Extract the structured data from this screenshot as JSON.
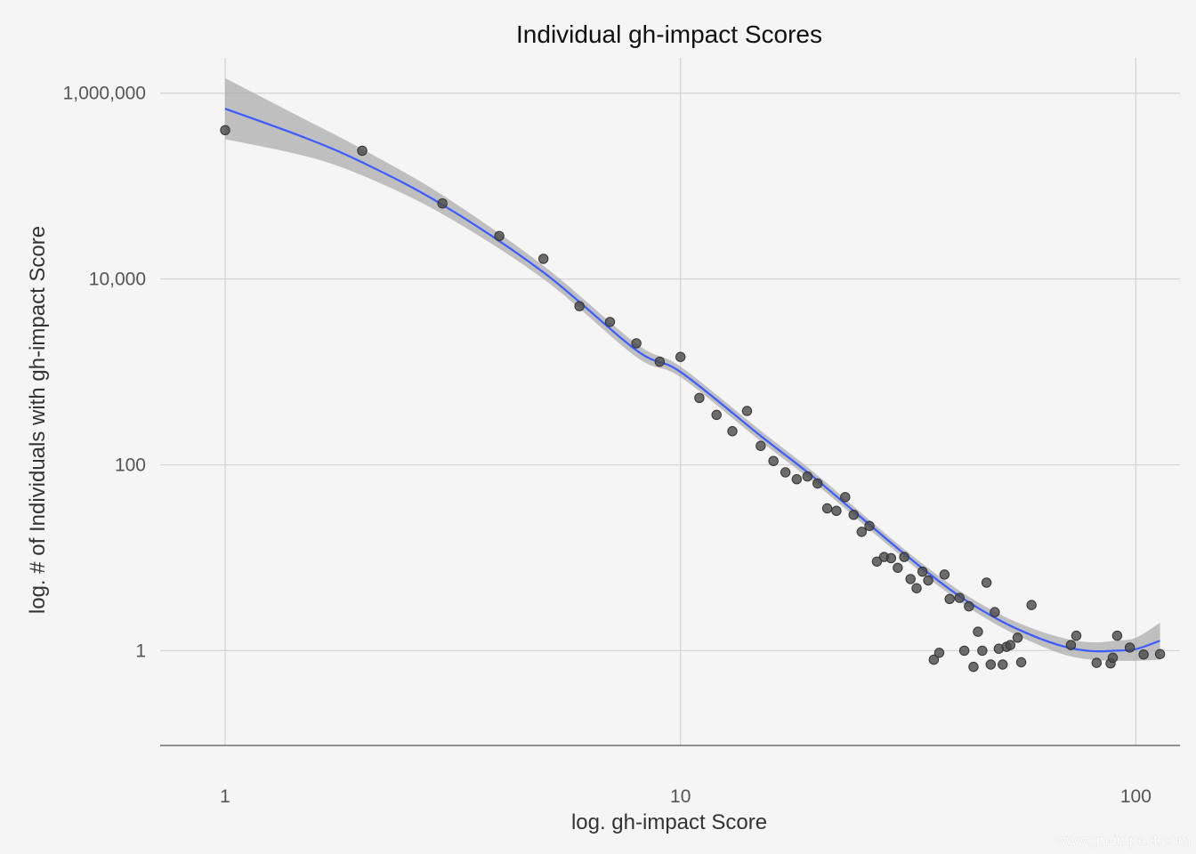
{
  "chart_data": {
    "type": "scatter",
    "title": "Individual gh-impact Scores",
    "xlabel": "log. gh-impact Score",
    "ylabel": "log. # of Individuals with gh-impact Score",
    "x_scale": "log",
    "y_scale": "log",
    "xlim": [
      0.72,
      125
    ],
    "ylim": [
      0.0955,
      2400000
    ],
    "x_ticks": [
      {
        "value": 1,
        "label": "1"
      },
      {
        "value": 10,
        "label": "10"
      },
      {
        "value": 100,
        "label": "100"
      }
    ],
    "y_ticks": [
      {
        "value": 1,
        "label": "1"
      },
      {
        "value": 100,
        "label": "100"
      },
      {
        "value": 10000,
        "label": "10,000"
      },
      {
        "value": 1000000,
        "label": "1,000,000"
      }
    ],
    "grid": true,
    "points": [
      {
        "x": 1,
        "y": 400000
      },
      {
        "x": 2,
        "y": 240000
      },
      {
        "x": 3,
        "y": 65000
      },
      {
        "x": 4,
        "y": 29000
      },
      {
        "x": 5,
        "y": 16500
      },
      {
        "x": 6,
        "y": 5100
      },
      {
        "x": 7,
        "y": 3450
      },
      {
        "x": 8,
        "y": 2030
      },
      {
        "x": 9,
        "y": 1290
      },
      {
        "x": 10,
        "y": 1450
      },
      {
        "x": 11,
        "y": 525
      },
      {
        "x": 12,
        "y": 345
      },
      {
        "x": 13,
        "y": 230
      },
      {
        "x": 14,
        "y": 380
      },
      {
        "x": 15,
        "y": 160
      },
      {
        "x": 16,
        "y": 110
      },
      {
        "x": 17,
        "y": 83
      },
      {
        "x": 18,
        "y": 70
      },
      {
        "x": 19,
        "y": 75
      },
      {
        "x": 20,
        "y": 63
      },
      {
        "x": 21,
        "y": 34
      },
      {
        "x": 22,
        "y": 32
      },
      {
        "x": 23,
        "y": 45
      },
      {
        "x": 24,
        "y": 29
      },
      {
        "x": 25,
        "y": 19
      },
      {
        "x": 26,
        "y": 22
      },
      {
        "x": 27,
        "y": 9.1
      },
      {
        "x": 28,
        "y": 10.2
      },
      {
        "x": 29,
        "y": 9.9
      },
      {
        "x": 30,
        "y": 7.8
      },
      {
        "x": 31,
        "y": 10.2
      },
      {
        "x": 32,
        "y": 5.9
      },
      {
        "x": 33,
        "y": 4.7
      },
      {
        "x": 34,
        "y": 7.1
      },
      {
        "x": 35,
        "y": 5.7
      },
      {
        "x": 36,
        "y": 0.8
      },
      {
        "x": 37,
        "y": 0.95
      },
      {
        "x": 38,
        "y": 6.6
      },
      {
        "x": 39,
        "y": 3.6
      },
      {
        "x": 41,
        "y": 3.7
      },
      {
        "x": 42,
        "y": 1.0
      },
      {
        "x": 43,
        "y": 3.0
      },
      {
        "x": 44,
        "y": 0.67
      },
      {
        "x": 45,
        "y": 1.6
      },
      {
        "x": 46,
        "y": 1.0
      },
      {
        "x": 47,
        "y": 5.4
      },
      {
        "x": 48,
        "y": 0.71
      },
      {
        "x": 49,
        "y": 2.6
      },
      {
        "x": 50,
        "y": 1.05
      },
      {
        "x": 51,
        "y": 0.71
      },
      {
        "x": 52,
        "y": 1.1
      },
      {
        "x": 53,
        "y": 1.15
      },
      {
        "x": 55,
        "y": 1.38
      },
      {
        "x": 56,
        "y": 0.75
      },
      {
        "x": 59,
        "y": 3.1
      },
      {
        "x": 72,
        "y": 1.15
      },
      {
        "x": 74,
        "y": 1.45
      },
      {
        "x": 82,
        "y": 0.74
      },
      {
        "x": 88,
        "y": 0.73
      },
      {
        "x": 89,
        "y": 0.84
      },
      {
        "x": 91,
        "y": 1.45
      },
      {
        "x": 97,
        "y": 1.08
      },
      {
        "x": 104,
        "y": 0.91
      },
      {
        "x": 113,
        "y": 0.92
      }
    ],
    "smooth": {
      "x": [
        1,
        1.5,
        2,
        3,
        5,
        8,
        10,
        15,
        20,
        30,
        40,
        50,
        60,
        70,
        80,
        90,
        100,
        113
      ],
      "y": [
        680000,
        330000,
        180000,
        63000,
        11800,
        1710,
        1000,
        205,
        68,
        12.6,
        4.2,
        2.15,
        1.42,
        1.1,
        0.99,
        1.0,
        1.04,
        1.28
      ],
      "lower": [
        320000,
        210000,
        130000,
        50000,
        10000,
        1450,
        880,
        180,
        60,
        11.2,
        3.7,
        1.85,
        1.2,
        0.9,
        0.8,
        0.78,
        0.78,
        0.8
      ],
      "upper": [
        1450000,
        520000,
        250000,
        80000,
        13900,
        2010,
        1140,
        233,
        77,
        14.1,
        4.8,
        2.5,
        1.7,
        1.35,
        1.23,
        1.28,
        1.38,
        2.0
      ],
      "color": "#3b5bff",
      "band_color": "#a8a8a8"
    },
    "point_color": "#4a4a4a",
    "watermark": "www.gh-impact.com"
  }
}
